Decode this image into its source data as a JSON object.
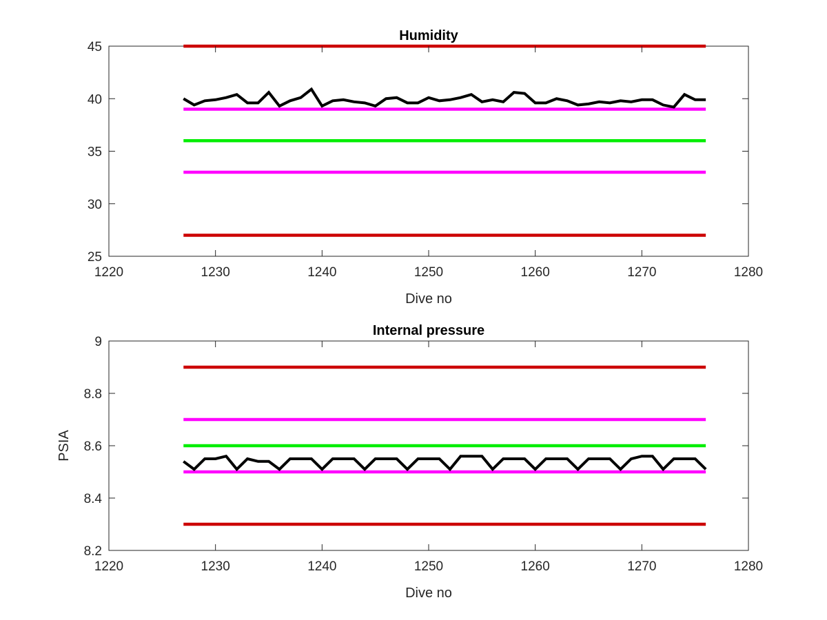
{
  "chart_data": [
    {
      "type": "line",
      "title": "Humidity",
      "xlabel": "Dive no",
      "ylabel": "",
      "xlim": [
        1220,
        1280
      ],
      "ylim": [
        25,
        45
      ],
      "xticks": [
        1220,
        1230,
        1240,
        1250,
        1260,
        1270,
        1280
      ],
      "yticks": [
        25,
        30,
        35,
        40,
        45
      ],
      "grid": false,
      "series": [
        {
          "color": "#cc0000",
          "x": [
            1227,
            1276
          ],
          "y": [
            45,
            45
          ]
        },
        {
          "color": "#cc0000",
          "x": [
            1227,
            1276
          ],
          "y": [
            27,
            27
          ]
        },
        {
          "color": "#ff00ff",
          "x": [
            1227,
            1276
          ],
          "y": [
            39,
            39
          ]
        },
        {
          "color": "#ff00ff",
          "x": [
            1227,
            1276
          ],
          "y": [
            33,
            33
          ]
        },
        {
          "color": "#00ee00",
          "x": [
            1227,
            1276
          ],
          "y": [
            36,
            36
          ]
        },
        {
          "color": "#000000",
          "x": [
            1227,
            1228,
            1229,
            1230,
            1231,
            1232,
            1233,
            1234,
            1235,
            1236,
            1237,
            1238,
            1239,
            1240,
            1241,
            1242,
            1243,
            1244,
            1245,
            1246,
            1247,
            1248,
            1249,
            1250,
            1251,
            1252,
            1253,
            1254,
            1255,
            1256,
            1257,
            1258,
            1259,
            1260,
            1261,
            1262,
            1263,
            1264,
            1265,
            1266,
            1267,
            1268,
            1269,
            1270,
            1271,
            1272,
            1273,
            1274,
            1275,
            1276
          ],
          "y": [
            40.0,
            39.4,
            39.8,
            39.9,
            40.1,
            40.4,
            39.6,
            39.6,
            40.6,
            39.3,
            39.8,
            40.1,
            40.9,
            39.3,
            39.8,
            39.9,
            39.7,
            39.6,
            39.3,
            40.0,
            40.1,
            39.6,
            39.6,
            40.1,
            39.8,
            39.9,
            40.1,
            40.4,
            39.7,
            39.9,
            39.7,
            40.6,
            40.5,
            39.6,
            39.6,
            40.0,
            39.8,
            39.4,
            39.5,
            39.7,
            39.6,
            39.8,
            39.7,
            39.9,
            39.9,
            39.4,
            39.2,
            40.4,
            39.9,
            39.9
          ]
        }
      ]
    },
    {
      "type": "line",
      "title": "Internal pressure",
      "xlabel": "Dive no",
      "ylabel": "PSIA",
      "xlim": [
        1220,
        1280
      ],
      "ylim": [
        8.2,
        9
      ],
      "xticks": [
        1220,
        1230,
        1240,
        1250,
        1260,
        1270,
        1280
      ],
      "yticks": [
        8.2,
        8.4,
        8.6,
        8.8,
        9
      ],
      "grid": false,
      "series": [
        {
          "color": "#cc0000",
          "x": [
            1227,
            1276
          ],
          "y": [
            8.9,
            8.9
          ]
        },
        {
          "color": "#cc0000",
          "x": [
            1227,
            1276
          ],
          "y": [
            8.3,
            8.3
          ]
        },
        {
          "color": "#ff00ff",
          "x": [
            1227,
            1276
          ],
          "y": [
            8.7,
            8.7
          ]
        },
        {
          "color": "#ff00ff",
          "x": [
            1227,
            1276
          ],
          "y": [
            8.5,
            8.5
          ]
        },
        {
          "color": "#00ee00",
          "x": [
            1227,
            1276
          ],
          "y": [
            8.6,
            8.6
          ]
        },
        {
          "color": "#000000",
          "x": [
            1227,
            1228,
            1229,
            1230,
            1231,
            1232,
            1233,
            1234,
            1235,
            1236,
            1237,
            1238,
            1239,
            1240,
            1241,
            1242,
            1243,
            1244,
            1245,
            1246,
            1247,
            1248,
            1249,
            1250,
            1251,
            1252,
            1253,
            1254,
            1255,
            1256,
            1257,
            1258,
            1259,
            1260,
            1261,
            1262,
            1263,
            1264,
            1265,
            1266,
            1267,
            1268,
            1269,
            1270,
            1271,
            1272,
            1273,
            1274,
            1275,
            1276
          ],
          "y": [
            8.54,
            8.51,
            8.55,
            8.55,
            8.56,
            8.51,
            8.55,
            8.54,
            8.54,
            8.51,
            8.55,
            8.55,
            8.55,
            8.51,
            8.55,
            8.55,
            8.55,
            8.51,
            8.55,
            8.55,
            8.55,
            8.51,
            8.55,
            8.55,
            8.55,
            8.51,
            8.56,
            8.56,
            8.56,
            8.51,
            8.55,
            8.55,
            8.55,
            8.51,
            8.55,
            8.55,
            8.55,
            8.51,
            8.55,
            8.55,
            8.55,
            8.51,
            8.55,
            8.56,
            8.56,
            8.51,
            8.55,
            8.55,
            8.55,
            8.51
          ]
        }
      ]
    }
  ]
}
